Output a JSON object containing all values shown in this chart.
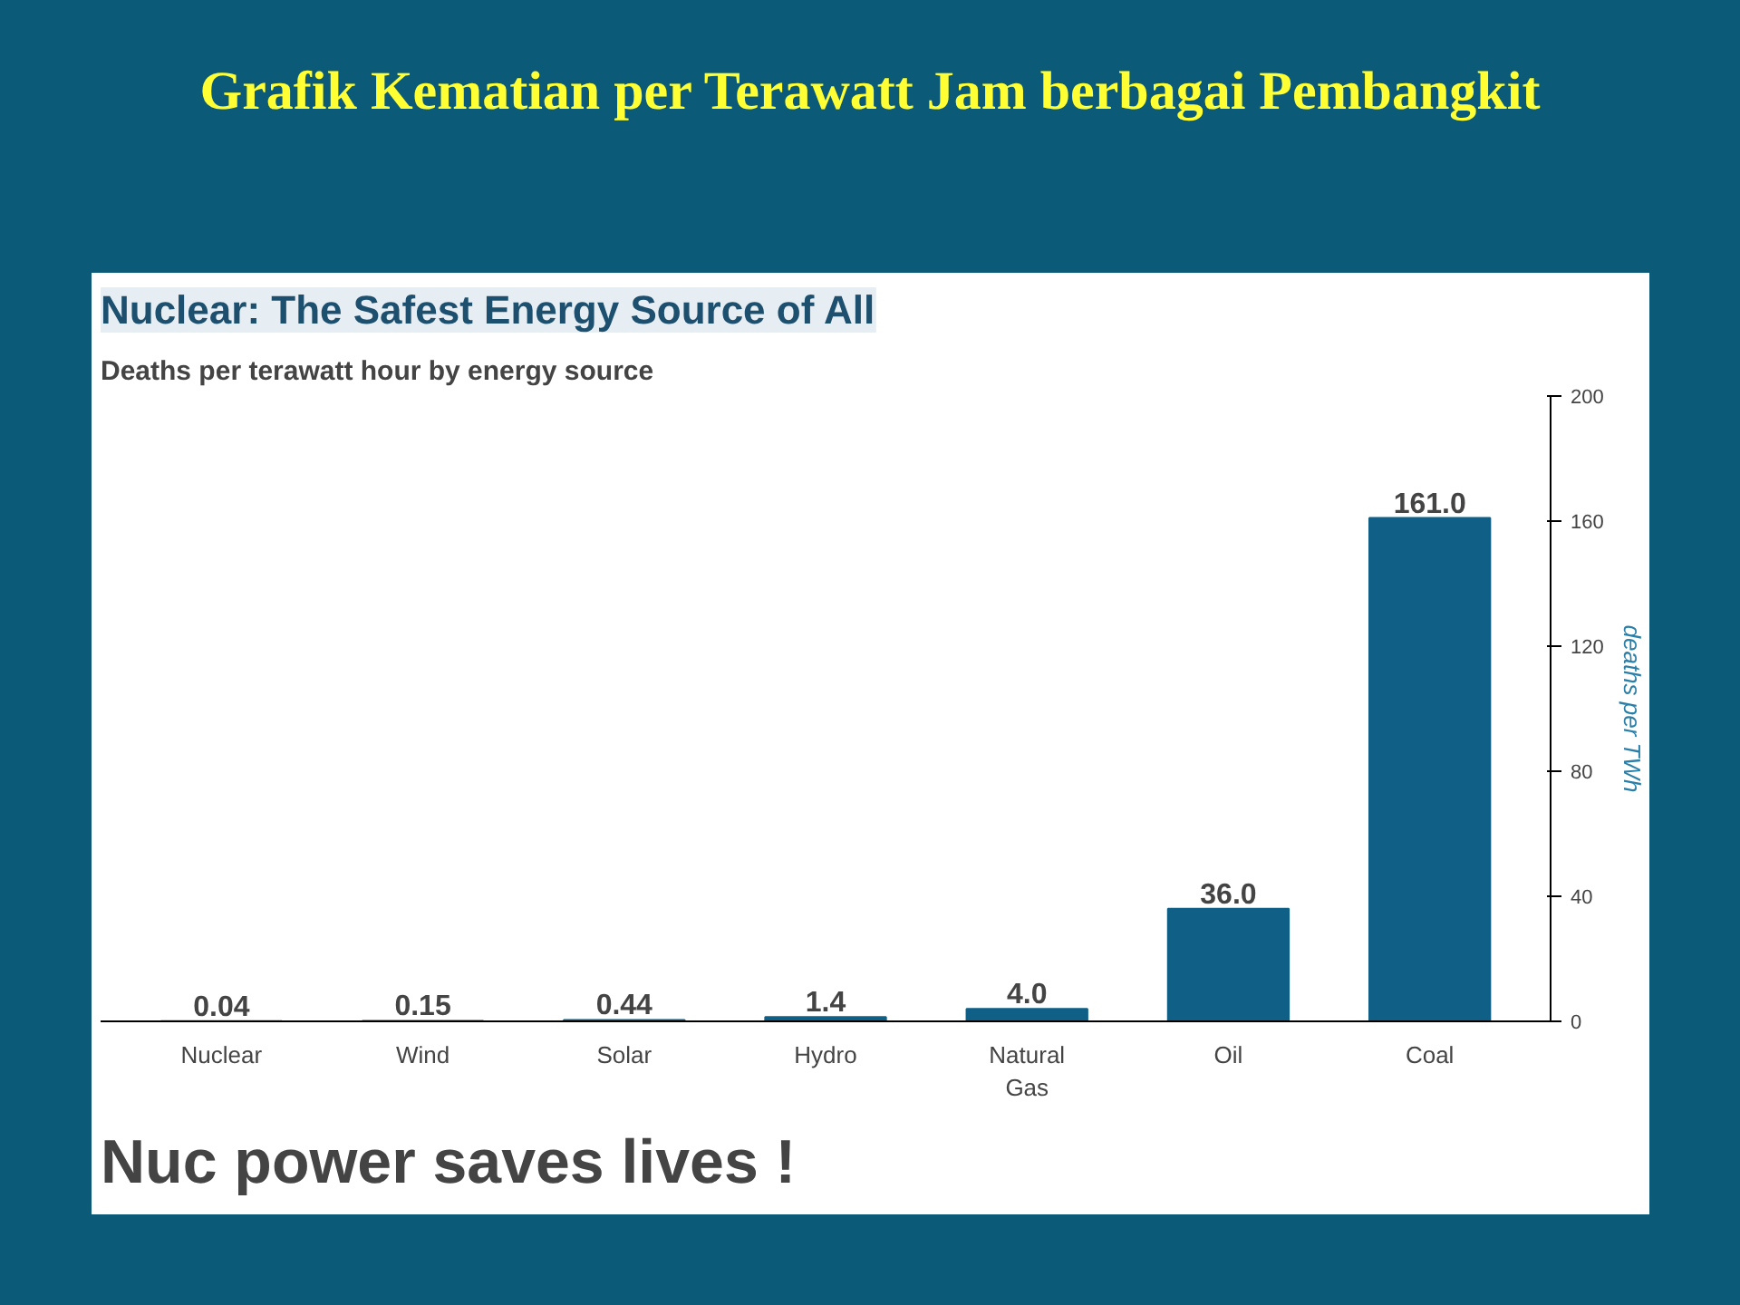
{
  "chart_data": {
    "type": "bar",
    "title": "Grafik Kematian per Terawatt Jam berbagai Pembangkit",
    "subtitle": "Nuclear: The Safest Energy Source of All",
    "annotations": [
      "Deaths per terawatt hour by energy source",
      "Nuc power saves lives !"
    ],
    "categories": [
      "Nuclear",
      "Wind",
      "Solar",
      "Hydro",
      "Natural Gas",
      "Oil",
      "Coal"
    ],
    "values": [
      0.04,
      0.15,
      0.44,
      1.4,
      4.0,
      36.0,
      161.0
    ],
    "value_labels": [
      "0.04",
      "0.15",
      "0.44",
      "1.4",
      "4.0",
      "36.0",
      "161.0"
    ],
    "color": "#0f5f87",
    "y2label": "deaths per TWh",
    "ylim": [
      0,
      200
    ],
    "yticks": [
      0,
      40,
      80,
      120,
      160,
      200
    ],
    "grid": false
  }
}
